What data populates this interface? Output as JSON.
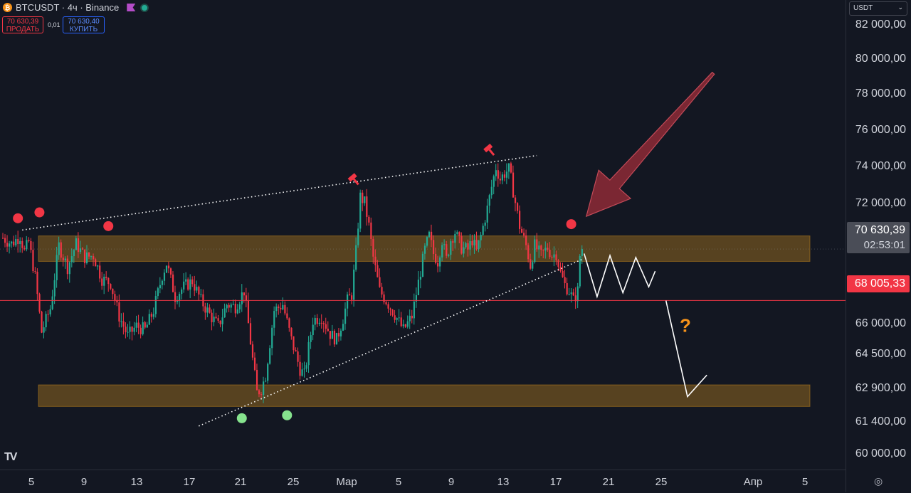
{
  "header": {
    "coin_glyph": "₿",
    "symbol_line": "BTCUSDT · 4ч · Binance"
  },
  "trade": {
    "sell_price": "70 630,39",
    "sell_label": "ПРОДАТЬ",
    "spread": "0,01",
    "buy_price": "70 630,40",
    "buy_label": "КУПИТЬ"
  },
  "currency": {
    "value": "USDT"
  },
  "price_label": {
    "price": "70 630,39",
    "countdown": "02:53:01"
  },
  "line_label": {
    "price": "68 005,33"
  },
  "tv_logo": "TV",
  "annotation": {
    "question": "?"
  },
  "colors": {
    "up": "#22ab94",
    "down": "#f23645",
    "zone": "#c8881c",
    "bg": "#131722"
  },
  "chart_data": {
    "type": "candlestick",
    "y_axis_labels": [
      "82 000,00",
      "80 000,00",
      "78 000,00",
      "76 000,00",
      "74 000,00",
      "72 000,00",
      "70 630,39",
      "66 000,00",
      "64 500,00",
      "62 900,00",
      "61 400,00",
      "60 000,00"
    ],
    "x_axis_labels": [
      "5",
      "9",
      "13",
      "17",
      "21",
      "25",
      "Мар",
      "5",
      "9",
      "13",
      "17",
      "21",
      "25",
      "Апр",
      "5"
    ],
    "y_range": [
      59600,
      82900
    ],
    "price_path": [
      [
        0,
        71200
      ],
      [
        4,
        70900
      ],
      [
        8,
        71300
      ],
      [
        10,
        70500
      ],
      [
        12,
        71000
      ],
      [
        15,
        69200
      ],
      [
        18,
        66400
      ],
      [
        22,
        67600
      ],
      [
        26,
        70800
      ],
      [
        30,
        69700
      ],
      [
        34,
        70900
      ],
      [
        38,
        70200
      ],
      [
        42,
        70300
      ],
      [
        46,
        69100
      ],
      [
        50,
        68900
      ],
      [
        54,
        67200
      ],
      [
        58,
        66200
      ],
      [
        62,
        66700
      ],
      [
        66,
        66500
      ],
      [
        70,
        67500
      ],
      [
        74,
        69300
      ],
      [
        76,
        69900
      ],
      [
        80,
        68200
      ],
      [
        84,
        68700
      ],
      [
        88,
        69000
      ],
      [
        92,
        68000
      ],
      [
        96,
        67300
      ],
      [
        100,
        66700
      ],
      [
        104,
        67800
      ],
      [
        108,
        67700
      ],
      [
        112,
        68500
      ],
      [
        114,
        66800
      ],
      [
        116,
        65000
      ],
      [
        118,
        63300
      ],
      [
        120,
        63500
      ],
      [
        122,
        64200
      ],
      [
        126,
        67500
      ],
      [
        130,
        67800
      ],
      [
        134,
        66000
      ],
      [
        138,
        64500
      ],
      [
        140,
        64200
      ],
      [
        144,
        67000
      ],
      [
        148,
        67200
      ],
      [
        152,
        66300
      ],
      [
        155,
        66000
      ],
      [
        158,
        67100
      ],
      [
        160,
        68000
      ],
      [
        162,
        68300
      ],
      [
        164,
        70500
      ],
      [
        166,
        73300
      ],
      [
        168,
        73000
      ],
      [
        170,
        71800
      ],
      [
        172,
        70200
      ],
      [
        175,
        68500
      ],
      [
        178,
        68000
      ],
      [
        182,
        67300
      ],
      [
        186,
        66500
      ],
      [
        190,
        67200
      ],
      [
        194,
        69500
      ],
      [
        196,
        70600
      ],
      [
        198,
        71300
      ],
      [
        200,
        70400
      ],
      [
        202,
        70000
      ],
      [
        204,
        71100
      ],
      [
        206,
        70100
      ],
      [
        208,
        71100
      ],
      [
        210,
        71500
      ],
      [
        213,
        70700
      ],
      [
        216,
        70600
      ],
      [
        218,
        71100
      ],
      [
        220,
        70500
      ],
      [
        222,
        71300
      ],
      [
        225,
        72700
      ],
      [
        227,
        73800
      ],
      [
        229,
        74800
      ],
      [
        231,
        74200
      ],
      [
        233,
        74500
      ],
      [
        235,
        74700
      ],
      [
        236,
        74200
      ],
      [
        238,
        73000
      ],
      [
        240,
        71800
      ],
      [
        243,
        70800
      ],
      [
        245,
        69800
      ],
      [
        247,
        70800
      ],
      [
        250,
        70300
      ],
      [
        253,
        70700
      ],
      [
        255,
        70300
      ],
      [
        257,
        70400
      ],
      [
        259,
        69400
      ],
      [
        261,
        68800
      ],
      [
        263,
        68500
      ],
      [
        265,
        68000
      ],
      [
        267,
        68500
      ],
      [
        268,
        70300
      ],
      [
        269,
        70600
      ]
    ],
    "zones": [
      {
        "name": "upper",
        "from": 70000,
        "to": 71300
      },
      {
        "name": "lower",
        "from": 62600,
        "to": 63700
      }
    ],
    "current_price": 70630.39,
    "horizontal_line": 68005.33,
    "trendlines": [
      {
        "name": "upper-resistance",
        "from": [
          9,
          71600
        ],
        "to": [
          248,
          75400
        ]
      },
      {
        "name": "lower-support",
        "from": [
          91,
          61600
        ],
        "to": [
          269,
          70100
        ]
      }
    ],
    "top_markers": [
      [
        7,
        72200
      ],
      [
        17,
        72500
      ],
      [
        49,
        71800
      ],
      [
        264,
        71900
      ]
    ],
    "bottom_markers": [
      [
        111,
        62000
      ],
      [
        132,
        62150
      ]
    ],
    "pin_markers": [
      [
        163,
        74200
      ],
      [
        226,
        75700
      ]
    ],
    "projection_paths": [
      [
        [
          270,
          70400
        ],
        [
          276,
          68200
        ],
        [
          282,
          70300
        ],
        [
          288,
          68400
        ],
        [
          294,
          70200
        ],
        [
          300,
          68700
        ],
        [
          303,
          69500
        ]
      ],
      [
        [
          308,
          68000
        ],
        [
          318,
          63100
        ],
        [
          327,
          64200
        ]
      ]
    ],
    "big_arrow": {
      "from": [
        330,
        79600
      ],
      "to": [
        271,
        72300
      ]
    },
    "question_position": [
      317,
      66700
    ]
  }
}
